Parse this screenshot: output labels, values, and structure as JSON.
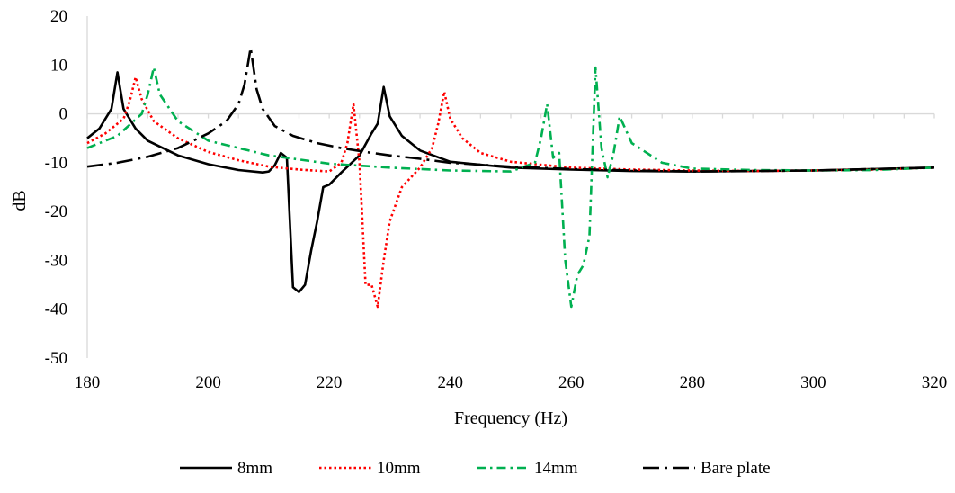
{
  "chart_data": {
    "type": "line",
    "xlabel": "Frequency (Hz)",
    "ylabel": "dB",
    "xlim": [
      180,
      320
    ],
    "ylim": [
      -50,
      20
    ],
    "xticks": [
      180,
      200,
      220,
      240,
      260,
      280,
      300,
      320
    ],
    "yticks": [
      -50,
      -40,
      -30,
      -20,
      -10,
      0,
      10,
      20
    ],
    "xtick_labels": [
      "180",
      "200",
      "220",
      "240",
      "260",
      "280",
      "300",
      "320"
    ],
    "ytick_labels": [
      "-50",
      "-40",
      "-30",
      "-20",
      "-10",
      "0",
      "10",
      "20"
    ],
    "grid": false,
    "legend_position": "bottom",
    "series": [
      {
        "name": "8mm",
        "color": "#000000",
        "style": "solid",
        "x": [
          180,
          182,
          184,
          185,
          186,
          188,
          190,
          195,
          200,
          205,
          209,
          210,
          211,
          212,
          213,
          214,
          215,
          216,
          217,
          218,
          219,
          220,
          222,
          225,
          227,
          228,
          229,
          230,
          232,
          235,
          240,
          250,
          260,
          270,
          280,
          290,
          300,
          310,
          320
        ],
        "y": [
          -5,
          -3,
          1,
          8.5,
          1,
          -3,
          -5.5,
          -8.5,
          -10.3,
          -11.5,
          -12,
          -11.8,
          -10.5,
          -8,
          -9,
          -35.5,
          -36.5,
          -35,
          -28,
          -22,
          -15,
          -14.5,
          -12,
          -8.5,
          -4,
          -2,
          5.5,
          -0.5,
          -4.5,
          -7.5,
          -9.8,
          -11,
          -11.4,
          -11.7,
          -11.8,
          -11.7,
          -11.6,
          -11.3,
          -11
        ]
      },
      {
        "name": "10mm",
        "color": "#ff0000",
        "style": "dotted",
        "x": [
          180,
          183,
          186,
          187,
          188,
          189,
          191,
          195,
          200,
          205,
          210,
          215,
          220,
          222,
          223,
          224,
          225,
          226,
          227,
          228,
          229,
          230,
          232,
          235,
          237,
          238,
          239,
          240,
          242,
          245,
          250,
          260,
          270,
          280,
          290,
          300,
          310,
          320
        ],
        "y": [
          -6,
          -4,
          -1,
          2.5,
          7.5,
          3,
          -1.5,
          -5,
          -7.8,
          -9.5,
          -10.8,
          -11.4,
          -11.8,
          -10,
          -6,
          2,
          -10,
          -35,
          -35,
          -39.5,
          -30,
          -22,
          -15,
          -11,
          -7,
          -2,
          4.5,
          -1,
          -5,
          -8,
          -9.8,
          -11,
          -11.4,
          -11.6,
          -11.7,
          -11.6,
          -11.4,
          -11
        ]
      },
      {
        "name": "14mm",
        "color": "#00b050",
        "style": "dashdot",
        "x": [
          180,
          185,
          189,
          190,
          191,
          192,
          195,
          200,
          210,
          220,
          230,
          240,
          250,
          254,
          255,
          256,
          257,
          258,
          259,
          260,
          261,
          262,
          263,
          264,
          265,
          266,
          267,
          268,
          270,
          275,
          280,
          290,
          300,
          310,
          320
        ],
        "y": [
          -7,
          -4.5,
          0,
          4,
          9.5,
          4,
          -1.5,
          -5.5,
          -8.5,
          -10.2,
          -11,
          -11.6,
          -11.8,
          -10,
          -5,
          2,
          -9,
          -8,
          -30,
          -39.5,
          -33,
          -31,
          -25,
          9.5,
          -7,
          -13,
          -8,
          -0.5,
          -6,
          -10,
          -11.2,
          -11.5,
          -11.6,
          -11.5,
          -11
        ]
      },
      {
        "name": "Bare plate",
        "color": "#000000",
        "style": "longdashdot",
        "x": [
          180,
          185,
          190,
          195,
          200,
          203,
          205,
          206,
          207,
          208,
          209,
          211,
          214,
          218,
          222,
          226,
          230,
          235,
          240,
          250,
          260,
          270,
          280,
          290,
          300,
          310,
          320
        ],
        "y": [
          -10.8,
          -10,
          -8.8,
          -7,
          -4,
          -1.5,
          2,
          6,
          13.5,
          5,
          1,
          -2.5,
          -4.5,
          -6,
          -7,
          -7.8,
          -8.5,
          -9.2,
          -10,
          -10.8,
          -11.3,
          -11.6,
          -11.8,
          -11.7,
          -11.6,
          -11.3,
          -11
        ]
      }
    ]
  }
}
